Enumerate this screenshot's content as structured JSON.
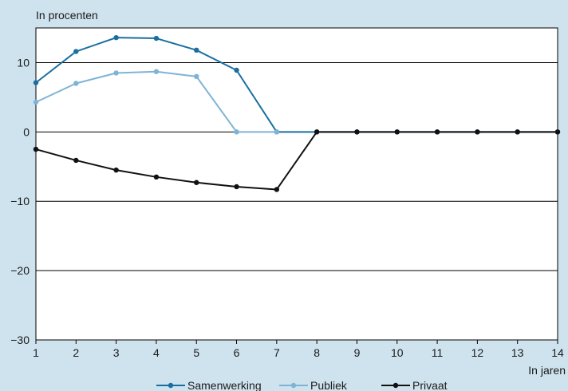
{
  "chart_data": {
    "type": "line",
    "ylabel": "In procenten",
    "xlabel": "In jaren",
    "x": [
      1,
      2,
      3,
      4,
      5,
      6,
      7,
      8,
      9,
      10,
      11,
      12,
      13,
      14
    ],
    "xticks": [
      "1",
      "2",
      "3",
      "4",
      "5",
      "6",
      "7",
      "8",
      "9",
      "10",
      "11",
      "12",
      "13",
      "14"
    ],
    "yticks": [
      "10",
      "0",
      "−10",
      "−20",
      "−30"
    ],
    "ytick_values": [
      10,
      0,
      -10,
      -20,
      -30
    ],
    "ylim": [
      -30,
      15
    ],
    "xlim": [
      1,
      14
    ],
    "grid": "horizontal",
    "legend_position": "bottom",
    "series": [
      {
        "name": "Samenwerking",
        "color": "#1a6fa0",
        "values": [
          7.1,
          11.6,
          13.6,
          13.5,
          11.8,
          8.9,
          0,
          0,
          0,
          0,
          0,
          0,
          0,
          0
        ]
      },
      {
        "name": "Publiek",
        "color": "#7fb3d6",
        "values": [
          4.3,
          7.0,
          8.5,
          8.7,
          8.0,
          0,
          0,
          null,
          null,
          null,
          null,
          null,
          null,
          null
        ]
      },
      {
        "name": "Privaat",
        "color": "#111111",
        "values": [
          -2.5,
          -4.1,
          -5.5,
          -6.5,
          -7.3,
          -7.9,
          -8.3,
          0,
          0,
          0,
          0,
          0,
          0,
          0
        ]
      }
    ]
  }
}
